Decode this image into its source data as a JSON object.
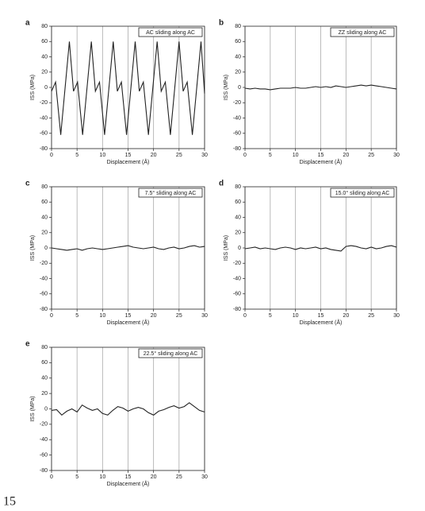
{
  "page_number": "15",
  "chart_data": [
    {
      "type": "line",
      "label": "a",
      "title": "AC sliding along AC",
      "xlabel": "Displacement (Å)",
      "ylabel": "ISS (MPa)",
      "x": [
        0,
        0.8,
        1.8,
        3.5,
        4.3,
        5.1,
        6.1,
        7.8,
        8.6,
        9.4,
        10.4,
        12.1,
        12.9,
        13.7,
        14.7,
        16.4,
        17.2,
        18,
        19,
        20.7,
        21.5,
        22.3,
        23.3,
        25,
        25.8,
        26.6,
        27.6,
        29.3,
        30
      ],
      "values": [
        -5,
        7,
        -62,
        60,
        -5,
        7,
        -62,
        60,
        -5,
        7,
        -62,
        60,
        -5,
        7,
        -62,
        60,
        -5,
        7,
        -62,
        60,
        -5,
        7,
        -62,
        60,
        -5,
        7,
        -62,
        60,
        -8
      ],
      "color": "#222222",
      "xlim": [
        0,
        30
      ],
      "ylim": [
        -80,
        80
      ],
      "xticks": [
        0,
        5,
        10,
        15,
        20,
        25,
        30
      ],
      "yticks": [
        -80,
        -60,
        -40,
        -20,
        0,
        20,
        40,
        60,
        80
      ],
      "grid": "x"
    },
    {
      "type": "line",
      "label": "b",
      "title": "ZZ sliding along AC",
      "xlabel": "Displacement (Å)",
      "ylabel": "ISS (MPa)",
      "x": [
        0,
        1,
        2,
        3,
        4,
        5,
        6,
        7,
        8,
        9,
        10,
        11,
        12,
        13,
        14,
        15,
        16,
        17,
        18,
        19,
        20,
        21,
        22,
        23,
        24,
        25,
        26,
        27,
        28,
        29,
        30
      ],
      "values": [
        -1,
        -2,
        -1,
        -2,
        -2,
        -3,
        -2,
        -1,
        -1,
        -1,
        0,
        -1,
        -1,
        0,
        1,
        0,
        1,
        0,
        2,
        1,
        0,
        1,
        2,
        3,
        2,
        3,
        2,
        1,
        0,
        -1,
        -2
      ],
      "color": "#222222",
      "xlim": [
        0,
        30
      ],
      "ylim": [
        -80,
        80
      ],
      "xticks": [
        0,
        5,
        10,
        15,
        20,
        25,
        30
      ],
      "yticks": [
        -80,
        -60,
        -40,
        -20,
        0,
        20,
        40,
        60,
        80
      ],
      "grid": "x"
    },
    {
      "type": "line",
      "label": "c",
      "title": "7.5° sliding along AC",
      "xlabel": "Displacement (Å)",
      "ylabel": "ISS (MPa)",
      "x": [
        0,
        1,
        2,
        3,
        4,
        5,
        6,
        7,
        8,
        9,
        10,
        11,
        12,
        13,
        14,
        15,
        16,
        17,
        18,
        19,
        20,
        21,
        22,
        23,
        24,
        25,
        26,
        27,
        28,
        29,
        30
      ],
      "values": [
        0,
        -1,
        -2,
        -3,
        -2,
        -1,
        -3,
        -1,
        0,
        -1,
        -2,
        -1,
        0,
        1,
        2,
        3,
        1,
        0,
        -1,
        0,
        1,
        -1,
        -2,
        0,
        1,
        -1,
        0,
        2,
        3,
        1,
        2
      ],
      "color": "#222222",
      "xlim": [
        0,
        30
      ],
      "ylim": [
        -80,
        80
      ],
      "xticks": [
        0,
        5,
        10,
        15,
        20,
        25,
        30
      ],
      "yticks": [
        -80,
        -60,
        -40,
        -20,
        0,
        20,
        40,
        60,
        80
      ],
      "grid": "x"
    },
    {
      "type": "line",
      "label": "d",
      "title": "15.0° sliding along AC",
      "xlabel": "Displacement (Å)",
      "ylabel": "ISS (MPa)",
      "x": [
        0,
        1,
        2,
        3,
        4,
        5,
        6,
        7,
        8,
        9,
        10,
        11,
        12,
        13,
        14,
        15,
        16,
        17,
        18,
        19,
        20,
        21,
        22,
        23,
        24,
        25,
        26,
        27,
        28,
        29,
        30
      ],
      "values": [
        -1,
        0,
        1,
        -1,
        0,
        -1,
        -2,
        0,
        1,
        0,
        -2,
        0,
        -1,
        0,
        1,
        -1,
        0,
        -2,
        -3,
        -4,
        2,
        3,
        2,
        0,
        -1,
        1,
        -1,
        0,
        2,
        3,
        1
      ],
      "color": "#222222",
      "xlim": [
        0,
        30
      ],
      "ylim": [
        -80,
        80
      ],
      "xticks": [
        0,
        5,
        10,
        15,
        20,
        25,
        30
      ],
      "yticks": [
        -80,
        -60,
        -40,
        -20,
        0,
        20,
        40,
        60,
        80
      ],
      "grid": "x"
    },
    {
      "type": "line",
      "label": "e",
      "title": "22.5° sliding along AC",
      "xlabel": "Displacement (Å)",
      "ylabel": "ISS (MPa)",
      "x": [
        0,
        1,
        2,
        3,
        4,
        5,
        6,
        7,
        8,
        9,
        10,
        11,
        12,
        13,
        14,
        15,
        16,
        17,
        18,
        19,
        20,
        21,
        22,
        23,
        24,
        25,
        26,
        27,
        28,
        29,
        30
      ],
      "values": [
        -2,
        -1,
        -8,
        -3,
        0,
        -4,
        5,
        1,
        -2,
        0,
        -6,
        -8,
        -2,
        3,
        1,
        -3,
        0,
        2,
        0,
        -5,
        -8,
        -3,
        -1,
        2,
        4,
        1,
        3,
        8,
        3,
        -2,
        -4
      ],
      "color": "#222222",
      "xlim": [
        0,
        30
      ],
      "ylim": [
        -80,
        80
      ],
      "xticks": [
        0,
        5,
        10,
        15,
        20,
        25,
        30
      ],
      "yticks": [
        -80,
        -60,
        -40,
        -20,
        0,
        20,
        40,
        60,
        80
      ],
      "grid": "x"
    }
  ]
}
